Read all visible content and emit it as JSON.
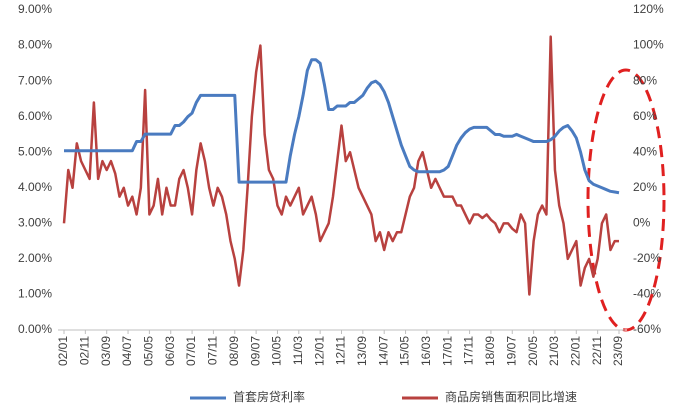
{
  "chart_data": {
    "type": "line",
    "categories": [
      "02/01",
      null,
      null,
      null,
      null,
      "02/11",
      null,
      null,
      null,
      null,
      "03/09",
      null,
      null,
      null,
      null,
      "04/07",
      null,
      null,
      null,
      null,
      "05/05",
      null,
      null,
      null,
      null,
      "06/03",
      null,
      null,
      null,
      null,
      "07/01",
      null,
      null,
      null,
      null,
      "07/11",
      null,
      null,
      null,
      null,
      "08/09",
      null,
      null,
      null,
      null,
      "09/07",
      null,
      null,
      null,
      null,
      "10/05",
      null,
      null,
      null,
      null,
      "11/03",
      null,
      null,
      null,
      null,
      "12/01",
      null,
      null,
      null,
      null,
      "12/11",
      null,
      null,
      null,
      null,
      "13/09",
      null,
      null,
      null,
      null,
      "14/07",
      null,
      null,
      null,
      null,
      "15/05",
      null,
      null,
      null,
      null,
      "16/03",
      null,
      null,
      null,
      null,
      "17/01",
      null,
      null,
      null,
      null,
      "17/11",
      null,
      null,
      null,
      null,
      "18/09",
      null,
      null,
      null,
      null,
      "19/07",
      null,
      null,
      null,
      null,
      "20/05",
      null,
      null,
      null,
      null,
      "21/03",
      null,
      null,
      null,
      null,
      "22/01",
      null,
      null,
      null,
      null,
      "22/11",
      null,
      null,
      null,
      null,
      "23/09"
    ],
    "series": [
      {
        "name": "首套房贷利率",
        "color": "#4a7bc0",
        "values": [
          5.04,
          5.04,
          5.04,
          5.04,
          5.04,
          5.04,
          5.04,
          5.04,
          5.04,
          5.04,
          5.04,
          5.04,
          5.04,
          5.04,
          5.04,
          5.04,
          5.04,
          5.3,
          5.3,
          5.51,
          5.51,
          5.51,
          5.51,
          5.51,
          5.51,
          5.51,
          5.75,
          5.75,
          5.85,
          6.0,
          6.1,
          6.4,
          6.6,
          6.6,
          6.6,
          6.6,
          6.6,
          6.6,
          6.6,
          6.6,
          6.6,
          4.16,
          4.16,
          4.16,
          4.16,
          4.16,
          4.16,
          4.16,
          4.16,
          4.16,
          4.16,
          4.16,
          4.16,
          4.9,
          5.5,
          6.0,
          6.6,
          7.3,
          7.6,
          7.6,
          7.5,
          6.9,
          6.2,
          6.2,
          6.3,
          6.3,
          6.3,
          6.4,
          6.4,
          6.5,
          6.6,
          6.8,
          6.95,
          7.0,
          6.9,
          6.7,
          6.4,
          6.0,
          5.6,
          5.2,
          4.9,
          4.6,
          4.5,
          4.45,
          4.45,
          4.45,
          4.45,
          4.45,
          4.45,
          4.5,
          4.6,
          4.9,
          5.2,
          5.4,
          5.55,
          5.65,
          5.7,
          5.7,
          5.7,
          5.7,
          5.6,
          5.5,
          5.5,
          5.45,
          5.45,
          5.45,
          5.5,
          5.45,
          5.4,
          5.35,
          5.3,
          5.3,
          5.3,
          5.3,
          5.35,
          5.45,
          5.6,
          5.7,
          5.75,
          5.6,
          5.4,
          5.0,
          4.5,
          4.2,
          4.1,
          4.05,
          4.0,
          3.95,
          3.9,
          3.88,
          3.86
        ]
      },
      {
        "name": "商品房销售面积同比增速",
        "color": "#b8413f",
        "axis": "y2",
        "values": [
          0,
          30,
          20,
          45,
          35,
          30,
          25,
          68,
          25,
          35,
          30,
          35,
          28,
          15,
          20,
          10,
          15,
          5,
          20,
          75,
          5,
          10,
          25,
          5,
          20,
          10,
          10,
          25,
          30,
          20,
          5,
          30,
          45,
          35,
          20,
          10,
          20,
          15,
          5,
          -10,
          -20,
          -35,
          -15,
          20,
          60,
          85,
          100,
          50,
          30,
          25,
          10,
          5,
          15,
          10,
          15,
          20,
          5,
          10,
          15,
          5,
          -10,
          -5,
          0,
          15,
          35,
          55,
          35,
          40,
          30,
          20,
          15,
          10,
          5,
          -10,
          -5,
          -15,
          -5,
          -10,
          -5,
          -5,
          5,
          15,
          20,
          35,
          40,
          30,
          20,
          25,
          20,
          15,
          15,
          15,
          10,
          10,
          5,
          0,
          5,
          5,
          3,
          5,
          2,
          0,
          -5,
          0,
          0,
          -3,
          -5,
          5,
          0,
          -40,
          -10,
          5,
          10,
          5,
          105,
          30,
          10,
          0,
          -20,
          -15,
          -10,
          -35,
          -25,
          -20,
          -30,
          -20,
          0,
          5,
          -15,
          -10,
          -10
        ]
      }
    ],
    "ylim": [
      0,
      9
    ],
    "yticks": [
      {
        "value": 0,
        "label": "0.00%"
      },
      {
        "value": 1,
        "label": "1.00%"
      },
      {
        "value": 2,
        "label": "2.00%"
      },
      {
        "value": 3,
        "label": "3.00%"
      },
      {
        "value": 4,
        "label": "4.00%"
      },
      {
        "value": 5,
        "label": "5.00%"
      },
      {
        "value": 6,
        "label": "6.00%"
      },
      {
        "value": 7,
        "label": "7.00%"
      },
      {
        "value": 8,
        "label": "8.00%"
      },
      {
        "value": 9,
        "label": "9.00%"
      }
    ],
    "y2lim": [
      -60,
      120
    ],
    "y2ticks": [
      {
        "value": -60,
        "label": "-60%"
      },
      {
        "value": -40,
        "label": "-40%"
      },
      {
        "value": -20,
        "label": "-20%"
      },
      {
        "value": 0,
        "label": "0%"
      },
      {
        "value": 20,
        "label": "20%"
      },
      {
        "value": 40,
        "label": "40%"
      },
      {
        "value": 60,
        "label": "60%"
      },
      {
        "value": 80,
        "label": "80%"
      },
      {
        "value": 100,
        "label": "100%"
      },
      {
        "value": 120,
        "label": "120%"
      }
    ],
    "grid": false
  }
}
